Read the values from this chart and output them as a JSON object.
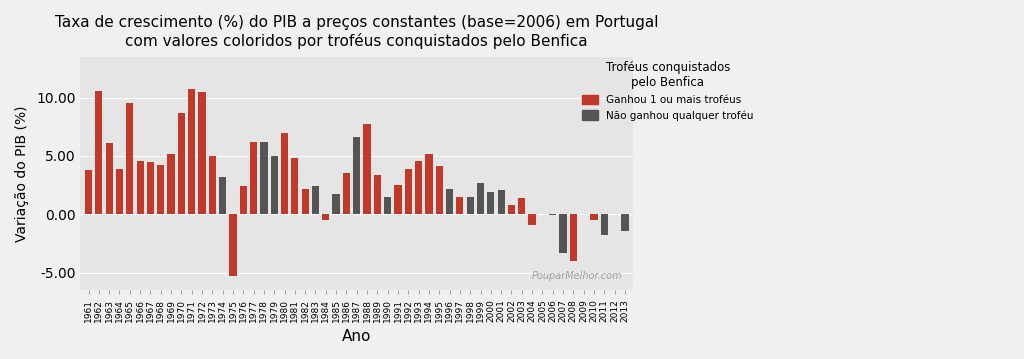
{
  "title": "Taxa de crescimento (%) do PIB a preços constantes (base=2006) em Portugal\ncom valores coloridos por troféus conquistados pelo Benfica",
  "xlabel": "Ano",
  "ylabel": "Variação do PIB (%)",
  "legend_title": "Troféus conquistados\npelo Benfica",
  "legend_label_red": "Ganhou 1 ou mais troféus",
  "legend_label_gray": "Não ganhou qualquer troféu",
  "watermark": "PouparMelhor.com",
  "background_color": "#e5e5e5",
  "fig_color": "#f0f0f0",
  "bar_color_red": "#c0392b",
  "bar_color_gray": "#555555",
  "years": [
    1961,
    1962,
    1963,
    1964,
    1965,
    1966,
    1967,
    1968,
    1969,
    1970,
    1971,
    1972,
    1973,
    1974,
    1975,
    1976,
    1977,
    1978,
    1979,
    1980,
    1981,
    1982,
    1983,
    1984,
    1985,
    1986,
    1987,
    1988,
    1989,
    1990,
    1991,
    1992,
    1993,
    1994,
    1995,
    1996,
    1997,
    1998,
    1999,
    2000,
    2001,
    2002,
    2003,
    2004,
    2005,
    2006,
    2007,
    2008,
    2009,
    2010,
    2011,
    2012,
    2013
  ],
  "values": [
    3.8,
    10.6,
    6.1,
    3.9,
    9.5,
    4.6,
    4.5,
    4.2,
    5.2,
    8.7,
    10.7,
    10.5,
    5.0,
    3.2,
    -5.3,
    2.4,
    6.2,
    6.2,
    5.0,
    7.0,
    4.8,
    2.2,
    2.4,
    -0.5,
    1.7,
    3.5,
    6.6,
    7.7,
    3.4,
    1.5,
    2.5,
    3.9,
    4.6,
    5.2,
    4.1,
    2.2,
    1.5,
    1.5,
    2.7,
    1.9,
    2.1,
    0.8,
    1.4,
    -0.9,
    0.0,
    -0.1,
    -3.3,
    -4.0,
    0.0,
    -0.5,
    -1.8,
    -0.0,
    -1.4
  ],
  "won": [
    1,
    1,
    1,
    1,
    1,
    1,
    1,
    1,
    1,
    1,
    1,
    1,
    1,
    0,
    1,
    1,
    1,
    0,
    0,
    1,
    1,
    1,
    0,
    1,
    0,
    1,
    0,
    1,
    1,
    0,
    1,
    1,
    1,
    1,
    1,
    0,
    1,
    0,
    0,
    0,
    0,
    1,
    1,
    1,
    0,
    0,
    0,
    1,
    0,
    1,
    0,
    1,
    0
  ],
  "ylim": [
    -6.5,
    13.5
  ],
  "yticks": [
    -5.0,
    0.0,
    5.0,
    10.0
  ]
}
